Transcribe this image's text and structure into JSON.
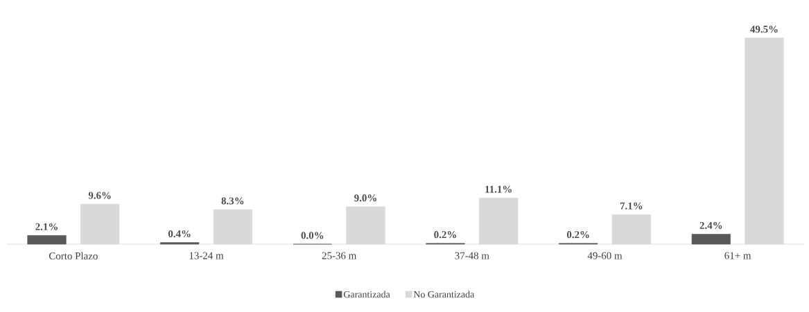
{
  "chart_data": {
    "type": "bar",
    "categories": [
      "Corto Plazo",
      "13-24 m",
      "25-36 m",
      "37-48 m",
      "49-60 m",
      "61+ m"
    ],
    "series": [
      {
        "name": "Garantizada",
        "color": "#595959",
        "values": [
          2.1,
          0.4,
          0.0,
          0.2,
          0.2,
          2.4
        ],
        "value_labels": [
          "2.1%",
          "0.4%",
          "0.0%",
          "0.2%",
          "0.2%",
          "2.4%"
        ]
      },
      {
        "name": "No Garantizada",
        "color": "#d9d9d9",
        "values": [
          9.6,
          8.3,
          9.0,
          11.1,
          7.1,
          49.5
        ],
        "value_labels": [
          "9.6%",
          "8.3%",
          "9.0%",
          "11.1%",
          "7.1%",
          "49.5%"
        ]
      }
    ],
    "legend": "bottom"
  }
}
